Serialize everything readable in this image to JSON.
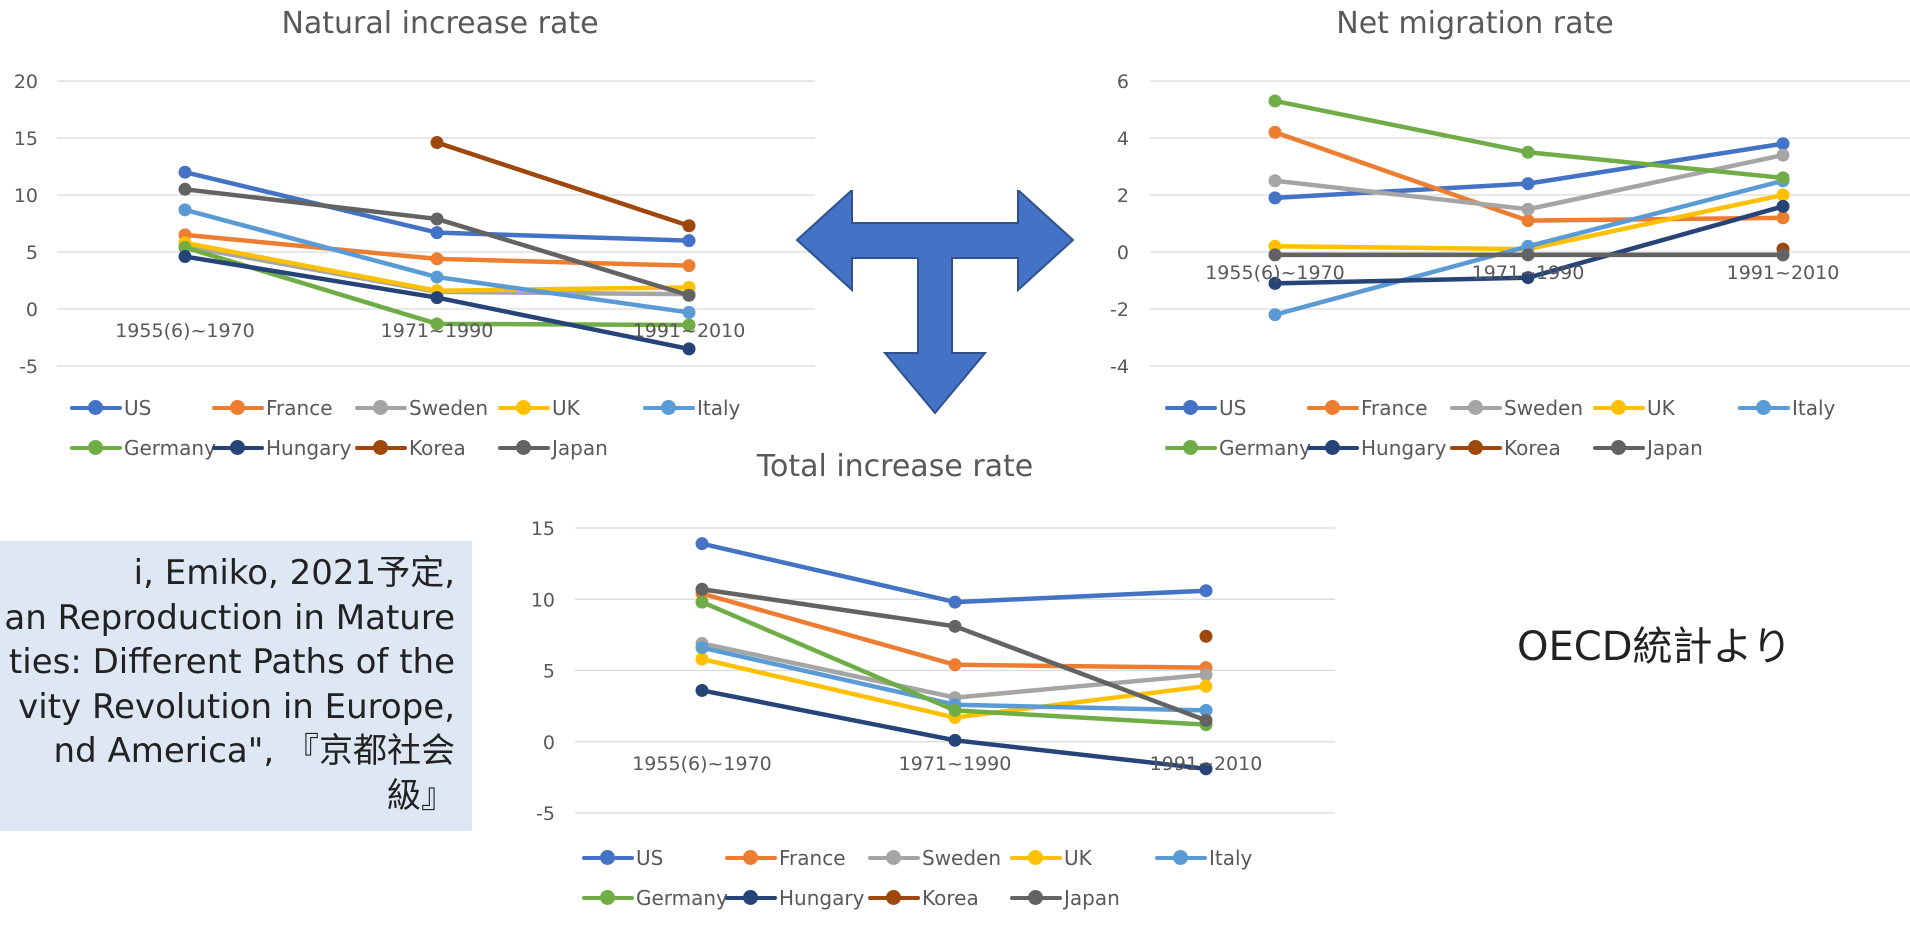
{
  "colors": {
    "US": "#4472c4",
    "France": "#ed7d31",
    "Sweden": "#a5a5a5",
    "UK": "#ffc000",
    "Italy": "#5b9bd5",
    "Germany": "#70ad47",
    "Hungary": "#264478",
    "Korea": "#9e480e",
    "Japan": "#636363",
    "grid": "#d9d9d9",
    "axis_text": "#595959",
    "arrow_fill": "#4472c4",
    "arrow_stroke": "#2f528f",
    "citation_bg": "#dde8f4"
  },
  "center_graphic": {
    "icon": "t-shaped-three-way-arrow-icon"
  },
  "citation": {
    "text": "i, Emiko, 2021予定,\nan Reproduction in Mature\nties: Different Paths of the\nvity Revolution in Europe,\nnd America\", 『京都社会\n級』"
  },
  "source_note": "OECD統計より",
  "chart_data": [
    {
      "type": "line",
      "title": "Natural increase rate",
      "categories": [
        "1955(6)~1970",
        "1971~1990",
        "1991~2010"
      ],
      "ylim": [
        -5,
        20
      ],
      "yticks": [
        -5,
        0,
        5,
        10,
        15,
        20
      ],
      "grid": true,
      "legend": "bottom",
      "series": [
        {
          "name": "US",
          "values": [
            12.0,
            6.7,
            6.0
          ]
        },
        {
          "name": "France",
          "values": [
            6.5,
            4.4,
            3.8
          ]
        },
        {
          "name": "Sweden",
          "values": [
            5.5,
            1.5,
            1.3
          ]
        },
        {
          "name": "UK",
          "values": [
            5.8,
            1.6,
            1.9
          ]
        },
        {
          "name": "Italy",
          "values": [
            8.7,
            2.8,
            -0.3
          ]
        },
        {
          "name": "Germany",
          "values": [
            5.4,
            -1.3,
            -1.4
          ]
        },
        {
          "name": "Hungary",
          "values": [
            4.6,
            1.0,
            -3.5
          ]
        },
        {
          "name": "Korea",
          "values": [
            null,
            14.6,
            7.3
          ]
        },
        {
          "name": "Japan",
          "values": [
            10.5,
            7.9,
            1.2
          ]
        }
      ]
    },
    {
      "type": "line",
      "title": "Net migration rate",
      "categories": [
        "1955(6)~1970",
        "1971~1990",
        "1991~2010"
      ],
      "ylim": [
        -4,
        6
      ],
      "yticks": [
        -4,
        -2,
        0,
        2,
        4,
        6
      ],
      "grid": true,
      "legend": "bottom",
      "series": [
        {
          "name": "US",
          "values": [
            1.9,
            2.4,
            3.8
          ]
        },
        {
          "name": "France",
          "values": [
            4.2,
            1.1,
            1.2
          ]
        },
        {
          "name": "Sweden",
          "values": [
            2.5,
            1.5,
            3.4
          ]
        },
        {
          "name": "UK",
          "values": [
            0.2,
            0.1,
            2.0
          ]
        },
        {
          "name": "Italy",
          "values": [
            -2.2,
            0.2,
            2.5
          ]
        },
        {
          "name": "Germany",
          "values": [
            5.3,
            3.5,
            2.6
          ]
        },
        {
          "name": "Hungary",
          "values": [
            -1.1,
            -0.9,
            1.6
          ]
        },
        {
          "name": "Korea",
          "values": [
            null,
            null,
            0.1
          ]
        },
        {
          "name": "Japan",
          "values": [
            -0.1,
            -0.1,
            -0.1
          ]
        }
      ]
    },
    {
      "type": "line",
      "title": "Total increase rate",
      "categories": [
        "1955(6)~1970",
        "1971~1990",
        "1991~2010"
      ],
      "ylim": [
        -5,
        15
      ],
      "yticks": [
        -5,
        0,
        5,
        10,
        15
      ],
      "grid": true,
      "legend": "bottom",
      "series": [
        {
          "name": "US",
          "values": [
            13.9,
            9.8,
            10.6
          ]
        },
        {
          "name": "France",
          "values": [
            10.4,
            5.4,
            5.2
          ]
        },
        {
          "name": "Sweden",
          "values": [
            6.9,
            3.1,
            4.7
          ]
        },
        {
          "name": "UK",
          "values": [
            5.8,
            1.7,
            3.9
          ]
        },
        {
          "name": "Italy",
          "values": [
            6.6,
            2.6,
            2.2
          ]
        },
        {
          "name": "Germany",
          "values": [
            9.8,
            2.2,
            1.2
          ]
        },
        {
          "name": "Hungary",
          "values": [
            3.6,
            0.1,
            -1.9
          ]
        },
        {
          "name": "Korea",
          "values": [
            null,
            null,
            7.4
          ]
        },
        {
          "name": "Japan",
          "values": [
            10.7,
            8.1,
            1.5
          ]
        }
      ]
    }
  ]
}
